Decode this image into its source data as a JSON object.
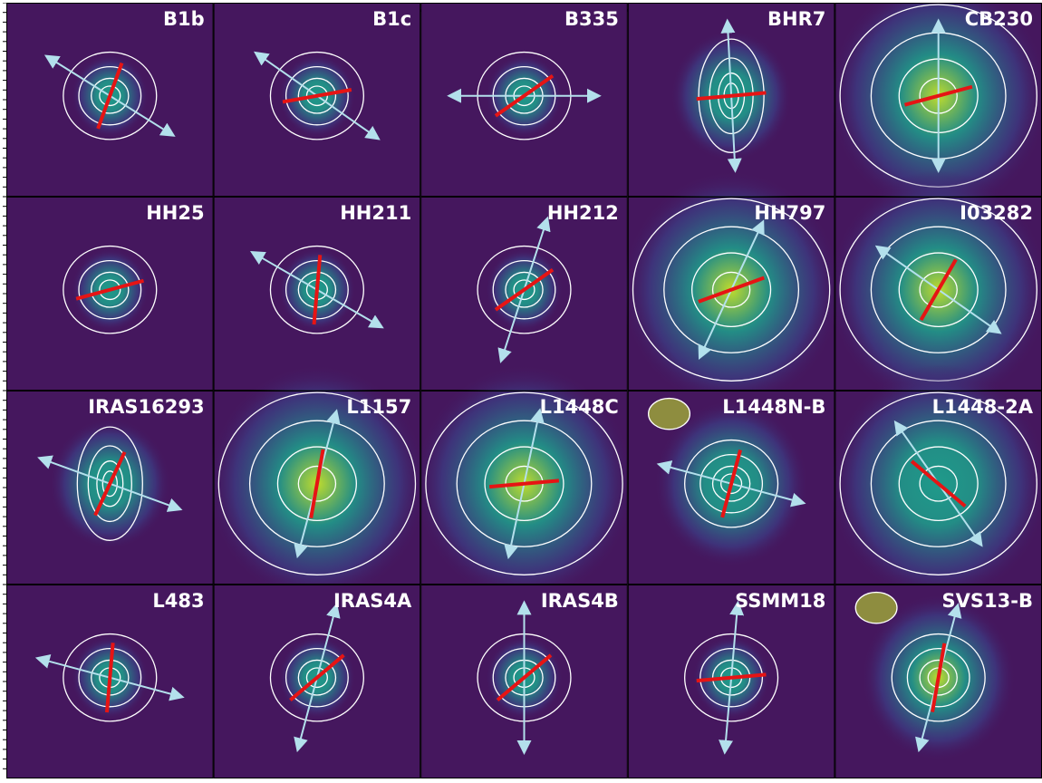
{
  "figure": {
    "columns": 5,
    "rows": 4,
    "colors": {
      "background_low": "#45175e",
      "background_mid": "#3b3f86",
      "core_mid": "#1f9a8a",
      "core_high": "#c0dc2c",
      "contour": "#ffffff",
      "outflow_arrow": "#b3e0ec",
      "polarization_bar": "#e61414",
      "frame": "#000000"
    }
  },
  "panels": [
    {
      "name": "B1b",
      "label": "B1b",
      "arrow_angle": 148,
      "bar_angle": 70,
      "core": "compact",
      "intensity": 0.25
    },
    {
      "name": "B1c",
      "label": "B1c",
      "arrow_angle": 145,
      "bar_angle": 10,
      "core": "compact",
      "intensity": 0.25
    },
    {
      "name": "B335",
      "label": "B335",
      "arrow_angle": 180,
      "bar_angle": 35,
      "core": "compact",
      "intensity": 0.45
    },
    {
      "name": "BHR7",
      "label": "BHR7",
      "arrow_angle": 93,
      "bar_angle": 5,
      "core": "elongated",
      "intensity": 0.55
    },
    {
      "name": "CB230",
      "label": "CB230",
      "arrow_angle": 90,
      "bar_angle": 15,
      "core": "extended",
      "intensity": 0.85
    },
    {
      "name": "HH25",
      "label": "HH25",
      "arrow_angle": null,
      "bar_angle": 15,
      "core": "compact",
      "intensity": 0.55
    },
    {
      "name": "HH211",
      "label": "HH211",
      "arrow_angle": 150,
      "bar_angle": 85,
      "core": "compact",
      "intensity": 0.45
    },
    {
      "name": "HH212",
      "label": "HH212",
      "arrow_angle": 72,
      "bar_angle": 35,
      "core": "compact",
      "intensity": 0.5
    },
    {
      "name": "HH797",
      "label": "HH797",
      "arrow_angle": 65,
      "bar_angle": 20,
      "core": "extended",
      "intensity": 0.85
    },
    {
      "name": "I03282",
      "label": "I03282",
      "arrow_angle": 145,
      "bar_angle": 60,
      "core": "extended",
      "intensity": 0.75
    },
    {
      "name": "IRAS16293",
      "label": "IRAS16293",
      "arrow_angle": 160,
      "bar_angle": 65,
      "core": "elongated",
      "intensity": 0.3
    },
    {
      "name": "L1157",
      "label": "L1157",
      "arrow_angle": 75,
      "bar_angle": 80,
      "core": "extended",
      "intensity": 1.0
    },
    {
      "name": "L1448C",
      "label": "L1448C",
      "arrow_angle": 78,
      "bar_angle": 5,
      "core": "extended",
      "intensity": 0.8
    },
    {
      "name": "L1448N-B",
      "label": "L1448N-B",
      "arrow_angle": 165,
      "bar_angle": 75,
      "core": "double",
      "intensity": 0.6
    },
    {
      "name": "L1448-2A",
      "label": "L1448-2A",
      "arrow_angle": 125,
      "bar_angle": 140,
      "core": "extended",
      "intensity": 0.55
    },
    {
      "name": "L483",
      "label": "L483",
      "arrow_angle": 165,
      "bar_angle": 85,
      "core": "compact",
      "intensity": 0.25
    },
    {
      "name": "IRAS4A",
      "label": "IRAS4A",
      "arrow_angle": 75,
      "bar_angle": 40,
      "core": "compact",
      "intensity": 0.45
    },
    {
      "name": "IRAS4B",
      "label": "IRAS4B",
      "arrow_angle": 90,
      "bar_angle": 40,
      "core": "compact",
      "intensity": 0.4
    },
    {
      "name": "SSMM18",
      "label": "SSMM18",
      "arrow_angle": 85,
      "bar_angle": 5,
      "core": "compact",
      "intensity": 0.45
    },
    {
      "name": "SVS13-B",
      "label": "SVS13-B",
      "arrow_angle": 75,
      "bar_angle": 80,
      "core": "double",
      "intensity": 0.75
    }
  ]
}
